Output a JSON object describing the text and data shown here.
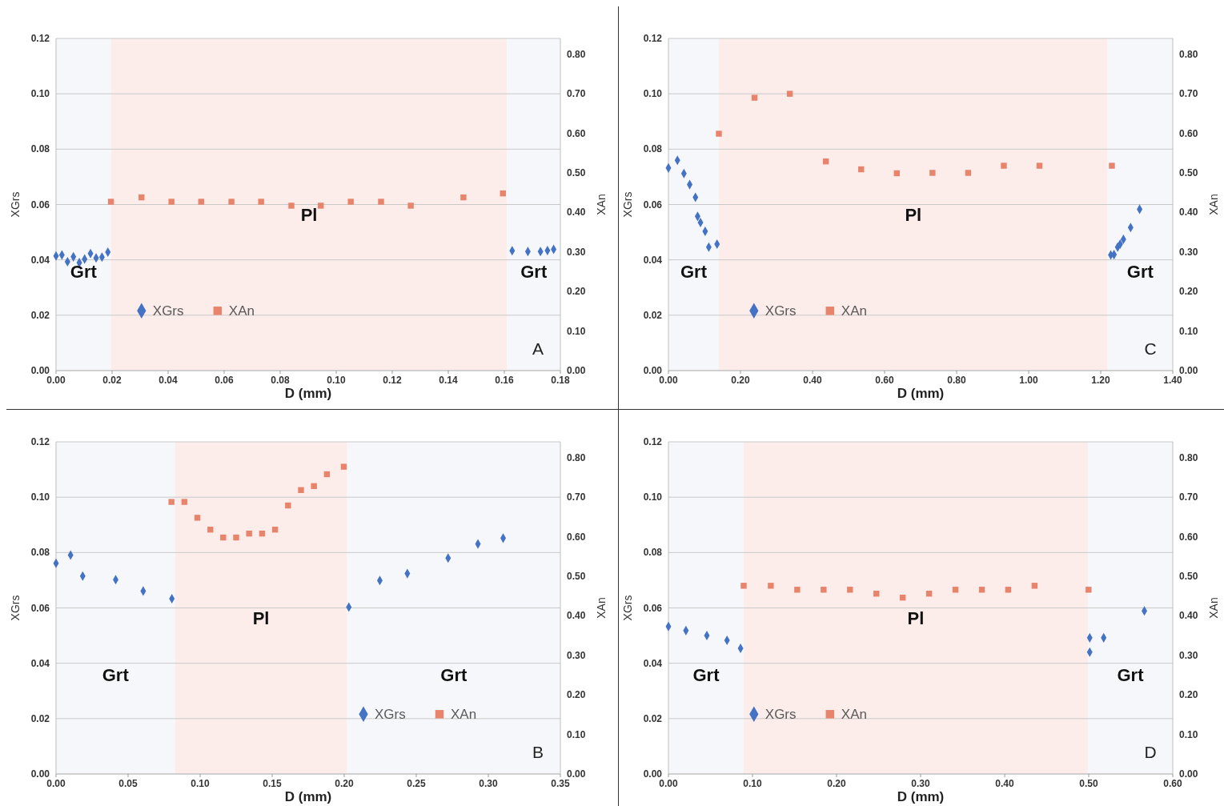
{
  "chart_data": [
    {
      "type": "scatter",
      "xlabel": "D (mm)",
      "ylabel": "XGrs",
      "y2label": "XAn",
      "xlim": [
        0,
        0.18
      ],
      "xticks": [
        {
          "value": 0,
          "label": "0.00"
        },
        {
          "value": 0.02,
          "label": "0.02"
        },
        {
          "value": 0.04,
          "label": "0.04"
        },
        {
          "value": 0.06,
          "label": "0.06"
        },
        {
          "value": 0.08,
          "label": "0.08"
        },
        {
          "value": 0.1,
          "label": "0.10"
        },
        {
          "value": 0.12,
          "label": "0.12"
        },
        {
          "value": 0.14,
          "label": "0.14"
        },
        {
          "value": 0.16,
          "label": "0.16"
        },
        {
          "value": 0.18,
          "label": "0.18"
        }
      ],
      "ylim": [
        0,
        0.12
      ],
      "yticks": [
        {
          "value": 0,
          "label": "0.00"
        },
        {
          "value": 0.02,
          "label": "0.02"
        },
        {
          "value": 0.04,
          "label": "0.04"
        },
        {
          "value": 0.06,
          "label": "0.06"
        },
        {
          "value": 0.08,
          "label": "0.08"
        },
        {
          "value": 0.1,
          "label": "0.10"
        },
        {
          "value": 0.12,
          "label": "0.12"
        }
      ],
      "y2lim": [
        0,
        0.84
      ],
      "y2ticks": [
        {
          "value": 0,
          "label": "0.00"
        },
        {
          "value": 0.1,
          "label": "0.10"
        },
        {
          "value": 0.2,
          "label": "0.20"
        },
        {
          "value": 0.3,
          "label": "0.30"
        },
        {
          "value": 0.4,
          "label": "0.40"
        },
        {
          "value": 0.5,
          "label": "0.50"
        },
        {
          "value": 0.6,
          "label": "0.60"
        },
        {
          "value": 0.7,
          "label": "0.70"
        },
        {
          "value": 0.8,
          "label": "0.80"
        }
      ],
      "grid": "y",
      "legend": "bottom left",
      "bands": [
        {
          "axis": "x",
          "from": 0,
          "to": 0.0196,
          "color": "#f6f7fa",
          "label": "Grt"
        },
        {
          "axis": "x",
          "from": 0.0196,
          "to": 0.161,
          "color": "#fcedeb",
          "label": "Pl"
        },
        {
          "axis": "x",
          "from": 0.161,
          "to": 0.18,
          "color": "#f6f7fa",
          "label": "Grt"
        }
      ],
      "annotations": [
        "A"
      ],
      "series": [
        {
          "name": "XGrs",
          "color": "#4472c4",
          "marker": "diamond",
          "x": [
            0,
            0.0021,
            0.0041,
            0.0062,
            0.0083,
            0.0102,
            0.0123,
            0.0143,
            0.0164,
            0.0185,
            0.1628,
            0.1684,
            0.1729,
            0.1754,
            0.1776
          ],
          "values": [
            0.0414,
            0.0418,
            0.0393,
            0.0411,
            0.039,
            0.0403,
            0.0423,
            0.0407,
            0.041,
            0.0428,
            0.0433,
            0.043,
            0.043,
            0.0434,
            0.0438
          ]
        },
        {
          "name": "XAn",
          "color": "#e8836c",
          "axis": "y2",
          "marker": "square",
          "x": [
            0.0196,
            0.0305,
            0.0412,
            0.0518,
            0.0626,
            0.0732,
            0.084,
            0.0945,
            0.1052,
            0.116,
            0.1266,
            0.1454,
            0.1595
          ],
          "values": [
            0.427,
            0.438,
            0.427,
            0.427,
            0.427,
            0.427,
            0.417,
            0.417,
            0.427,
            0.427,
            0.417,
            0.438,
            0.448
          ]
        }
      ]
    },
    {
      "type": "scatter",
      "xlabel": "D (mm)",
      "ylabel": "XGrs",
      "y2label": "XAn",
      "xlim": [
        0,
        1.4
      ],
      "xticks": [
        {
          "value": 0,
          "label": "0.00"
        },
        {
          "value": 0.2,
          "label": "0.20"
        },
        {
          "value": 0.4,
          "label": "0.40"
        },
        {
          "value": 0.6,
          "label": "0.60"
        },
        {
          "value": 0.8,
          "label": "0.80"
        },
        {
          "value": 1,
          "label": "1.00"
        },
        {
          "value": 1.2,
          "label": "1.20"
        },
        {
          "value": 1.4,
          "label": "1.40"
        }
      ],
      "ylim": [
        0,
        0.12
      ],
      "yticks": [
        {
          "value": 0,
          "label": "0.00"
        },
        {
          "value": 0.02,
          "label": "0.02"
        },
        {
          "value": 0.04,
          "label": "0.04"
        },
        {
          "value": 0.06,
          "label": "0.06"
        },
        {
          "value": 0.08,
          "label": "0.08"
        },
        {
          "value": 0.1,
          "label": "0.10"
        },
        {
          "value": 0.12,
          "label": "0.12"
        }
      ],
      "y2lim": [
        0,
        0.84
      ],
      "y2ticks": [
        {
          "value": 0,
          "label": "0.00"
        },
        {
          "value": 0.1,
          "label": "0.10"
        },
        {
          "value": 0.2,
          "label": "0.20"
        },
        {
          "value": 0.3,
          "label": "0.30"
        },
        {
          "value": 0.4,
          "label": "0.40"
        },
        {
          "value": 0.5,
          "label": "0.50"
        },
        {
          "value": 0.6,
          "label": "0.60"
        },
        {
          "value": 0.7,
          "label": "0.70"
        },
        {
          "value": 0.8,
          "label": "0.80"
        }
      ],
      "grid": "y",
      "legend": "bottom left",
      "bands": [
        {
          "axis": "x",
          "from": 0,
          "to": 0.14,
          "color": "#f6f7fa",
          "label": "Grt"
        },
        {
          "axis": "x",
          "from": 0.14,
          "to": 1.219,
          "color": "#fcedeb",
          "label": "Pl"
        },
        {
          "axis": "x",
          "from": 1.219,
          "to": 1.4,
          "color": "#f6f7fa",
          "label": "Grt"
        }
      ],
      "annotations": [
        "C"
      ],
      "series": [
        {
          "name": "XGrs",
          "color": "#4472c4",
          "marker": "diamond",
          "x": [
            0,
            0.025,
            0.043,
            0.059,
            0.075,
            0.081,
            0.089,
            0.102,
            0.112,
            0.135,
            1.228,
            1.237,
            1.247,
            1.254,
            1.263,
            1.283,
            1.308
          ],
          "values": [
            0.0732,
            0.076,
            0.0712,
            0.0672,
            0.0626,
            0.0557,
            0.0535,
            0.0503,
            0.0446,
            0.0457,
            0.0418,
            0.0419,
            0.0446,
            0.0457,
            0.0474,
            0.0517,
            0.0583
          ]
        },
        {
          "name": "XAn",
          "color": "#e8836c",
          "axis": "y2",
          "marker": "square",
          "x": [
            0.14,
            0.239,
            0.337,
            0.437,
            0.535,
            0.634,
            0.733,
            0.832,
            0.931,
            1.03,
            1.231
          ],
          "values": [
            0.599,
            0.69,
            0.7,
            0.529,
            0.509,
            0.499,
            0.5,
            0.5,
            0.518,
            0.518,
            0.518
          ]
        }
      ]
    },
    {
      "type": "scatter",
      "xlabel": "D (mm)",
      "ylabel": "XGrs",
      "y2label": "XAn",
      "xlim": [
        0,
        0.35
      ],
      "xticks": [
        {
          "value": 0,
          "label": "0.00"
        },
        {
          "value": 0.05,
          "label": "0.05"
        },
        {
          "value": 0.1,
          "label": "0.10"
        },
        {
          "value": 0.15,
          "label": "0.15"
        },
        {
          "value": 0.2,
          "label": "0.20"
        },
        {
          "value": 0.25,
          "label": "0.25"
        },
        {
          "value": 0.3,
          "label": "0.30"
        },
        {
          "value": 0.35,
          "label": "0.35"
        }
      ],
      "ylim": [
        0,
        0.12
      ],
      "yticks": [
        {
          "value": 0,
          "label": "0.00"
        },
        {
          "value": 0.02,
          "label": "0.02"
        },
        {
          "value": 0.04,
          "label": "0.04"
        },
        {
          "value": 0.06,
          "label": "0.06"
        },
        {
          "value": 0.08,
          "label": "0.08"
        },
        {
          "value": 0.1,
          "label": "0.10"
        },
        {
          "value": 0.12,
          "label": "0.12"
        }
      ],
      "y2lim": [
        0,
        0.84
      ],
      "y2ticks": [
        {
          "value": 0,
          "label": "0.00"
        },
        {
          "value": 0.1,
          "label": "0.10"
        },
        {
          "value": 0.2,
          "label": "0.20"
        },
        {
          "value": 0.3,
          "label": "0.30"
        },
        {
          "value": 0.4,
          "label": "0.40"
        },
        {
          "value": 0.5,
          "label": "0.50"
        },
        {
          "value": 0.6,
          "label": "0.60"
        },
        {
          "value": 0.7,
          "label": "0.70"
        },
        {
          "value": 0.8,
          "label": "0.80"
        }
      ],
      "grid": "y",
      "legend": "bottom right",
      "bands": [
        {
          "axis": "x",
          "from": 0,
          "to": 0.0825,
          "color": "#f6f7fa",
          "label": "Grt"
        },
        {
          "axis": "x",
          "from": 0.0825,
          "to": 0.202,
          "color": "#fcedeb",
          "label": "Pl"
        },
        {
          "axis": "x",
          "from": 0.202,
          "to": 0.35,
          "color": "#f6f7fa",
          "label": "Grt"
        }
      ],
      "annotations": [
        "B"
      ],
      "series": [
        {
          "name": "XGrs",
          "color": "#4472c4",
          "marker": "diamond",
          "x": [
            0,
            0.0101,
            0.0185,
            0.0414,
            0.0605,
            0.0804,
            0.2032,
            0.2247,
            0.2438,
            0.2721,
            0.2928,
            0.3103
          ],
          "values": [
            0.0761,
            0.0791,
            0.0715,
            0.0702,
            0.0661,
            0.0633,
            0.0603,
            0.0699,
            0.0724,
            0.078,
            0.0831,
            0.0852
          ]
        },
        {
          "name": "XAn",
          "color": "#e8836c",
          "axis": "y2",
          "marker": "square",
          "x": [
            0.0801,
            0.0891,
            0.0981,
            0.1071,
            0.116,
            0.125,
            0.134,
            0.143,
            0.152,
            0.161,
            0.17,
            0.179,
            0.188,
            0.1997
          ],
          "values": [
            0.688,
            0.688,
            0.648,
            0.618,
            0.598,
            0.598,
            0.608,
            0.608,
            0.618,
            0.679,
            0.718,
            0.728,
            0.758,
            0.777
          ]
        }
      ]
    },
    {
      "type": "scatter",
      "xlabel": "D (mm)",
      "ylabel": "XGrs",
      "y2label": "XAn",
      "xlim": [
        0,
        0.6
      ],
      "xticks": [
        {
          "value": 0,
          "label": "0.00"
        },
        {
          "value": 0.1,
          "label": "0.10"
        },
        {
          "value": 0.2,
          "label": "0.20"
        },
        {
          "value": 0.3,
          "label": "0.30"
        },
        {
          "value": 0.4,
          "label": "0.40"
        },
        {
          "value": 0.5,
          "label": "0.50"
        },
        {
          "value": 0.6,
          "label": "0.60"
        }
      ],
      "ylim": [
        0,
        0.12
      ],
      "yticks": [
        {
          "value": 0,
          "label": "0.00"
        },
        {
          "value": 0.02,
          "label": "0.02"
        },
        {
          "value": 0.04,
          "label": "0.04"
        },
        {
          "value": 0.06,
          "label": "0.06"
        },
        {
          "value": 0.08,
          "label": "0.08"
        },
        {
          "value": 0.1,
          "label": "0.10"
        },
        {
          "value": 0.12,
          "label": "0.12"
        }
      ],
      "y2lim": [
        0,
        0.84
      ],
      "y2ticks": [
        {
          "value": 0,
          "label": "0.00"
        },
        {
          "value": 0.1,
          "label": "0.10"
        },
        {
          "value": 0.2,
          "label": "0.20"
        },
        {
          "value": 0.3,
          "label": "0.30"
        },
        {
          "value": 0.4,
          "label": "0.40"
        },
        {
          "value": 0.5,
          "label": "0.50"
        },
        {
          "value": 0.6,
          "label": "0.60"
        },
        {
          "value": 0.7,
          "label": "0.70"
        },
        {
          "value": 0.8,
          "label": "0.80"
        }
      ],
      "grid": "y",
      "legend": "bottom left",
      "bands": [
        {
          "axis": "x",
          "from": 0,
          "to": 0.0895,
          "color": "#f6f7fa",
          "label": "Grt"
        },
        {
          "axis": "x",
          "from": 0.0895,
          "to": 0.499,
          "color": "#fcedeb",
          "label": "Pl"
        },
        {
          "axis": "x",
          "from": 0.499,
          "to": 0.6,
          "color": "#f6f7fa",
          "label": "Grt"
        }
      ],
      "annotations": [
        "D"
      ],
      "series": [
        {
          "name": "XGrs",
          "color": "#4472c4",
          "marker": "diamond",
          "x": [
            0,
            0.0208,
            0.0457,
            0.0697,
            0.0858,
            0.5012,
            0.5012,
            0.5178,
            0.5662
          ],
          "values": [
            0.0533,
            0.0518,
            0.05,
            0.0483,
            0.0454,
            0.0492,
            0.044,
            0.0492,
            0.0589
          ]
        },
        {
          "name": "XAn",
          "color": "#e8836c",
          "axis": "y2",
          "marker": "square",
          "x": [
            0.0895,
            0.1218,
            0.1532,
            0.1846,
            0.216,
            0.2474,
            0.2787,
            0.3101,
            0.3415,
            0.3729,
            0.4042,
            0.4356,
            0.4998
          ],
          "values": [
            0.476,
            0.476,
            0.466,
            0.466,
            0.466,
            0.456,
            0.446,
            0.456,
            0.466,
            0.466,
            0.466,
            0.476,
            0.466
          ]
        }
      ]
    }
  ]
}
